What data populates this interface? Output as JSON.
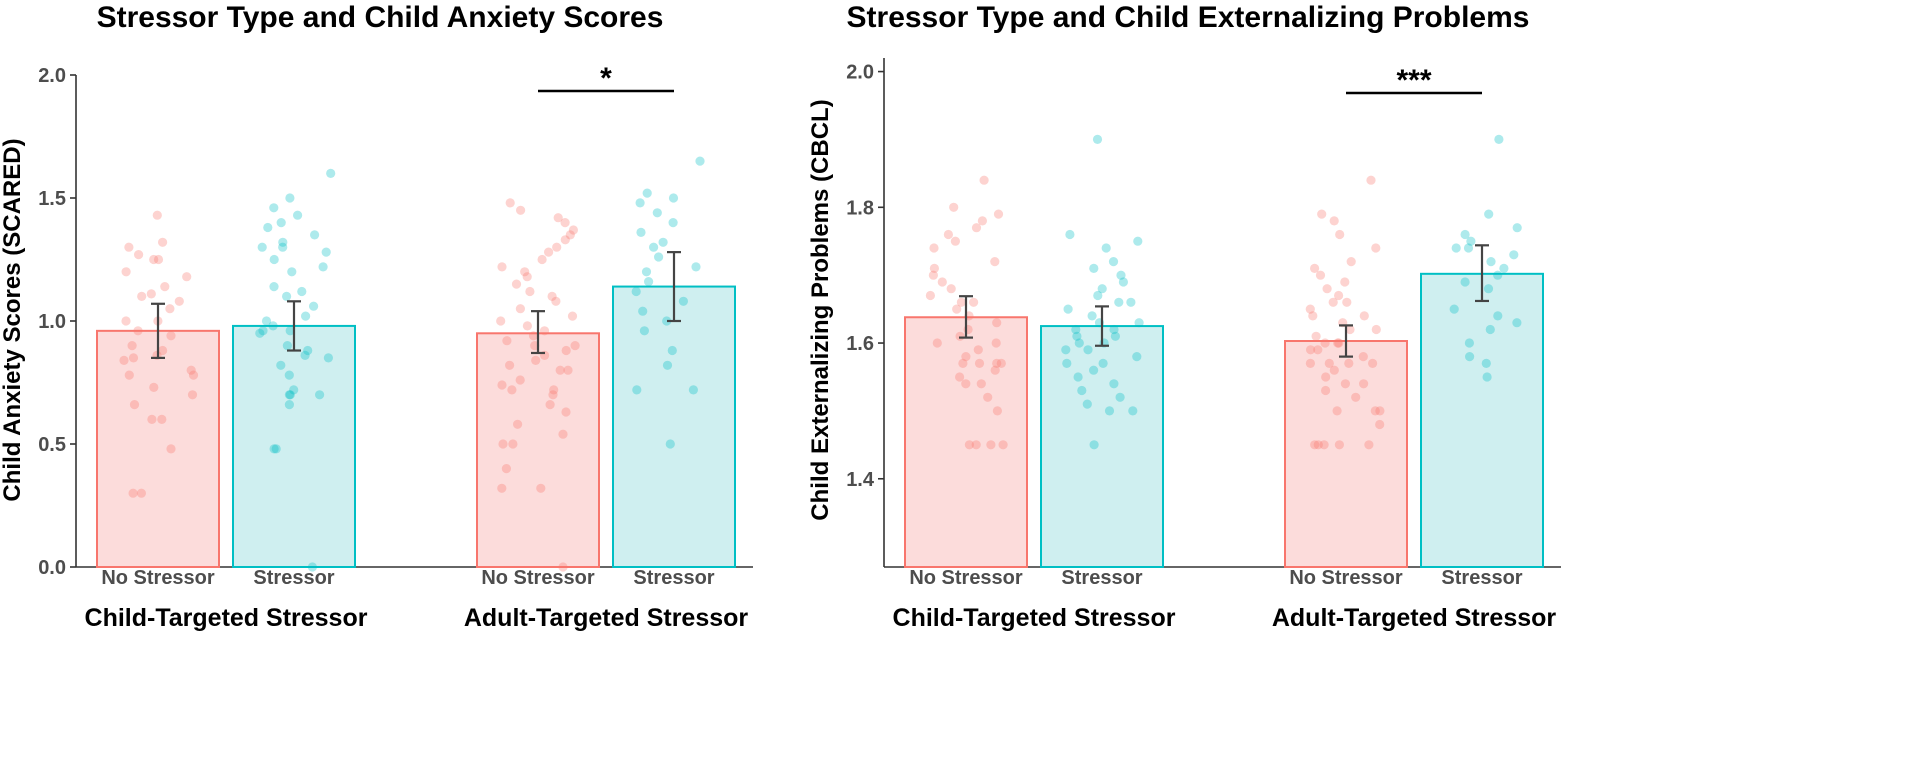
{
  "colors": {
    "no_stressor_fill": "#fcdcdb",
    "no_stressor_stroke": "#f8766d",
    "stressor_fill": "#cfeff0",
    "stressor_stroke": "#00bfc4",
    "axis": "#333333",
    "errorbar": "#444444"
  },
  "chart_data": [
    {
      "type": "bar",
      "title": "Stressor Type and Child Anxiety Scores",
      "ylabel": "Child Anxiety Scores (SCARED)",
      "ylim": [
        0,
        2.0
      ],
      "yticks": [
        0.0,
        0.5,
        1.0,
        1.5,
        2.0
      ],
      "ytick_labels": [
        "0.0",
        "0.5",
        "1.0",
        "1.5",
        "2.0"
      ],
      "categories": [
        "No Stressor",
        "Stressor"
      ],
      "groups": [
        {
          "label": "Child-Targeted Stressor",
          "significance": "",
          "bars": [
            {
              "category": "No Stressor",
              "mean": 0.96,
              "se_low": 0.85,
              "se_high": 1.07,
              "points": [
                1.43,
                1.32,
                1.3,
                1.27,
                1.25,
                1.25,
                1.2,
                1.18,
                1.14,
                1.11,
                1.1,
                1.08,
                1.05,
                1.0,
                1.0,
                0.96,
                0.94,
                0.9,
                0.88,
                0.86,
                0.85,
                0.84,
                0.8,
                0.78,
                0.78,
                0.73,
                0.7,
                0.66,
                0.6,
                0.6,
                0.48,
                0.3,
                0.3
              ]
            },
            {
              "category": "Stressor",
              "mean": 0.98,
              "se_low": 0.88,
              "se_high": 1.08,
              "points": [
                1.6,
                1.5,
                1.46,
                1.43,
                1.4,
                1.38,
                1.35,
                1.32,
                1.3,
                1.3,
                1.28,
                1.25,
                1.22,
                1.2,
                1.14,
                1.12,
                1.1,
                1.06,
                1.02,
                1.0,
                0.98,
                0.96,
                0.96,
                0.95,
                0.9,
                0.88,
                0.86,
                0.85,
                0.82,
                0.78,
                0.72,
                0.7,
                0.7,
                0.7,
                0.66,
                0.48,
                0.48,
                0.0
              ]
            }
          ]
        },
        {
          "label": "Adult-Targeted Stressor",
          "significance": "*",
          "bars": [
            {
              "category": "No Stressor",
              "mean": 0.95,
              "se_low": 0.87,
              "se_high": 1.04,
              "points": [
                1.48,
                1.45,
                1.42,
                1.4,
                1.37,
                1.35,
                1.33,
                1.3,
                1.28,
                1.25,
                1.22,
                1.2,
                1.18,
                1.15,
                1.12,
                1.1,
                1.08,
                1.05,
                1.02,
                1.0,
                0.98,
                0.96,
                0.94,
                0.92,
                0.9,
                0.9,
                0.88,
                0.86,
                0.84,
                0.82,
                0.8,
                0.8,
                0.76,
                0.74,
                0.72,
                0.72,
                0.7,
                0.66,
                0.63,
                0.58,
                0.54,
                0.5,
                0.5,
                0.4,
                0.32,
                0.32,
                0.0
              ]
            },
            {
              "category": "Stressor",
              "mean": 1.14,
              "se_low": 1.0,
              "se_high": 1.28,
              "points": [
                1.65,
                1.52,
                1.5,
                1.48,
                1.44,
                1.4,
                1.36,
                1.32,
                1.3,
                1.26,
                1.22,
                1.2,
                1.16,
                1.12,
                1.08,
                1.04,
                1.0,
                0.96,
                0.88,
                0.82,
                0.72,
                0.72,
                0.5
              ]
            }
          ]
        }
      ]
    },
    {
      "type": "bar",
      "title": "Stressor Type and Child Externalizing Problems",
      "ylabel": "Child Externalizing Problems (CBCL)",
      "ylim": [
        1.27,
        2.02
      ],
      "yticks": [
        1.4,
        1.6,
        1.8,
        2.0
      ],
      "ytick_labels": [
        "1.4",
        "1.6",
        "1.8",
        "2.0"
      ],
      "categories": [
        "No Stressor",
        "Stressor"
      ],
      "groups": [
        {
          "label": "Child-Targeted Stressor",
          "significance": "",
          "bars": [
            {
              "category": "No Stressor",
              "mean": 1.638,
              "se_low": 1.608,
              "se_high": 1.669,
              "points": [
                1.84,
                1.8,
                1.79,
                1.78,
                1.77,
                1.76,
                1.75,
                1.74,
                1.72,
                1.71,
                1.7,
                1.69,
                1.68,
                1.67,
                1.66,
                1.66,
                1.65,
                1.64,
                1.63,
                1.62,
                1.61,
                1.6,
                1.6,
                1.59,
                1.58,
                1.57,
                1.57,
                1.57,
                1.57,
                1.56,
                1.55,
                1.54,
                1.54,
                1.52,
                1.5,
                1.45,
                1.45,
                1.45,
                1.45
              ]
            },
            {
              "category": "Stressor",
              "mean": 1.625,
              "se_low": 1.596,
              "se_high": 1.654,
              "points": [
                1.9,
                1.76,
                1.75,
                1.74,
                1.72,
                1.71,
                1.7,
                1.69,
                1.68,
                1.67,
                1.66,
                1.66,
                1.65,
                1.64,
                1.63,
                1.63,
                1.62,
                1.62,
                1.61,
                1.61,
                1.6,
                1.6,
                1.59,
                1.59,
                1.58,
                1.57,
                1.57,
                1.56,
                1.55,
                1.54,
                1.53,
                1.52,
                1.51,
                1.5,
                1.5,
                1.45
              ]
            }
          ]
        },
        {
          "label": "Adult-Targeted Stressor",
          "significance": "***",
          "bars": [
            {
              "category": "No Stressor",
              "mean": 1.603,
              "se_low": 1.58,
              "se_high": 1.626,
              "points": [
                1.84,
                1.79,
                1.78,
                1.76,
                1.74,
                1.72,
                1.71,
                1.7,
                1.69,
                1.68,
                1.67,
                1.66,
                1.66,
                1.65,
                1.64,
                1.64,
                1.63,
                1.62,
                1.62,
                1.61,
                1.6,
                1.6,
                1.6,
                1.59,
                1.59,
                1.58,
                1.57,
                1.57,
                1.57,
                1.57,
                1.56,
                1.55,
                1.54,
                1.54,
                1.53,
                1.52,
                1.5,
                1.5,
                1.5,
                1.48,
                1.45,
                1.45,
                1.45,
                1.45,
                1.45
              ]
            },
            {
              "category": "Stressor",
              "mean": 1.702,
              "se_low": 1.662,
              "se_high": 1.744,
              "points": [
                1.9,
                1.79,
                1.77,
                1.76,
                1.75,
                1.74,
                1.74,
                1.73,
                1.72,
                1.71,
                1.7,
                1.69,
                1.68,
                1.65,
                1.64,
                1.63,
                1.62,
                1.6,
                1.58,
                1.57,
                1.55
              ]
            }
          ]
        }
      ]
    }
  ]
}
